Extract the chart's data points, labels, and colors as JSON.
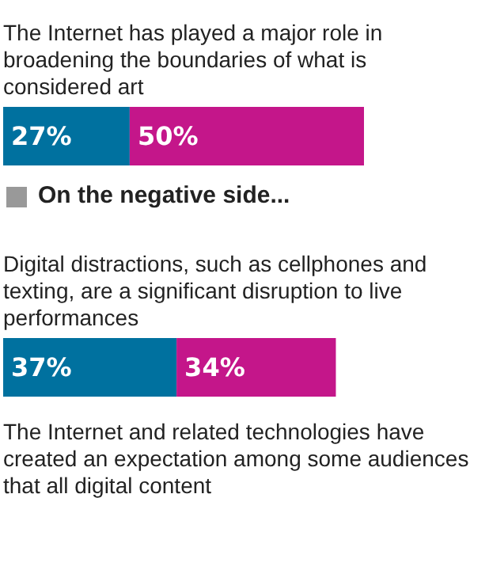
{
  "chart_data": {
    "type": "bar",
    "orientation": "horizontal",
    "stacked": true,
    "categories": [
      "The Internet has played a major role in broadening the boundaries of what is considered art",
      "Digital distractions, such as cellphones and texting, are a significant disruption to live performances"
    ],
    "series": [
      {
        "color": "#00719f",
        "values": [
          27,
          37
        ],
        "value_labels": [
          "27%",
          "37%"
        ]
      },
      {
        "color": "#c4168a",
        "values": [
          50,
          34
        ],
        "value_labels": [
          "50%",
          "34%"
        ]
      }
    ],
    "annotations": [
      "On the negative side...",
      "The Internet and related technologies have created an expectation among some audiences that all digital content"
    ],
    "tick_labels": false
  }
}
